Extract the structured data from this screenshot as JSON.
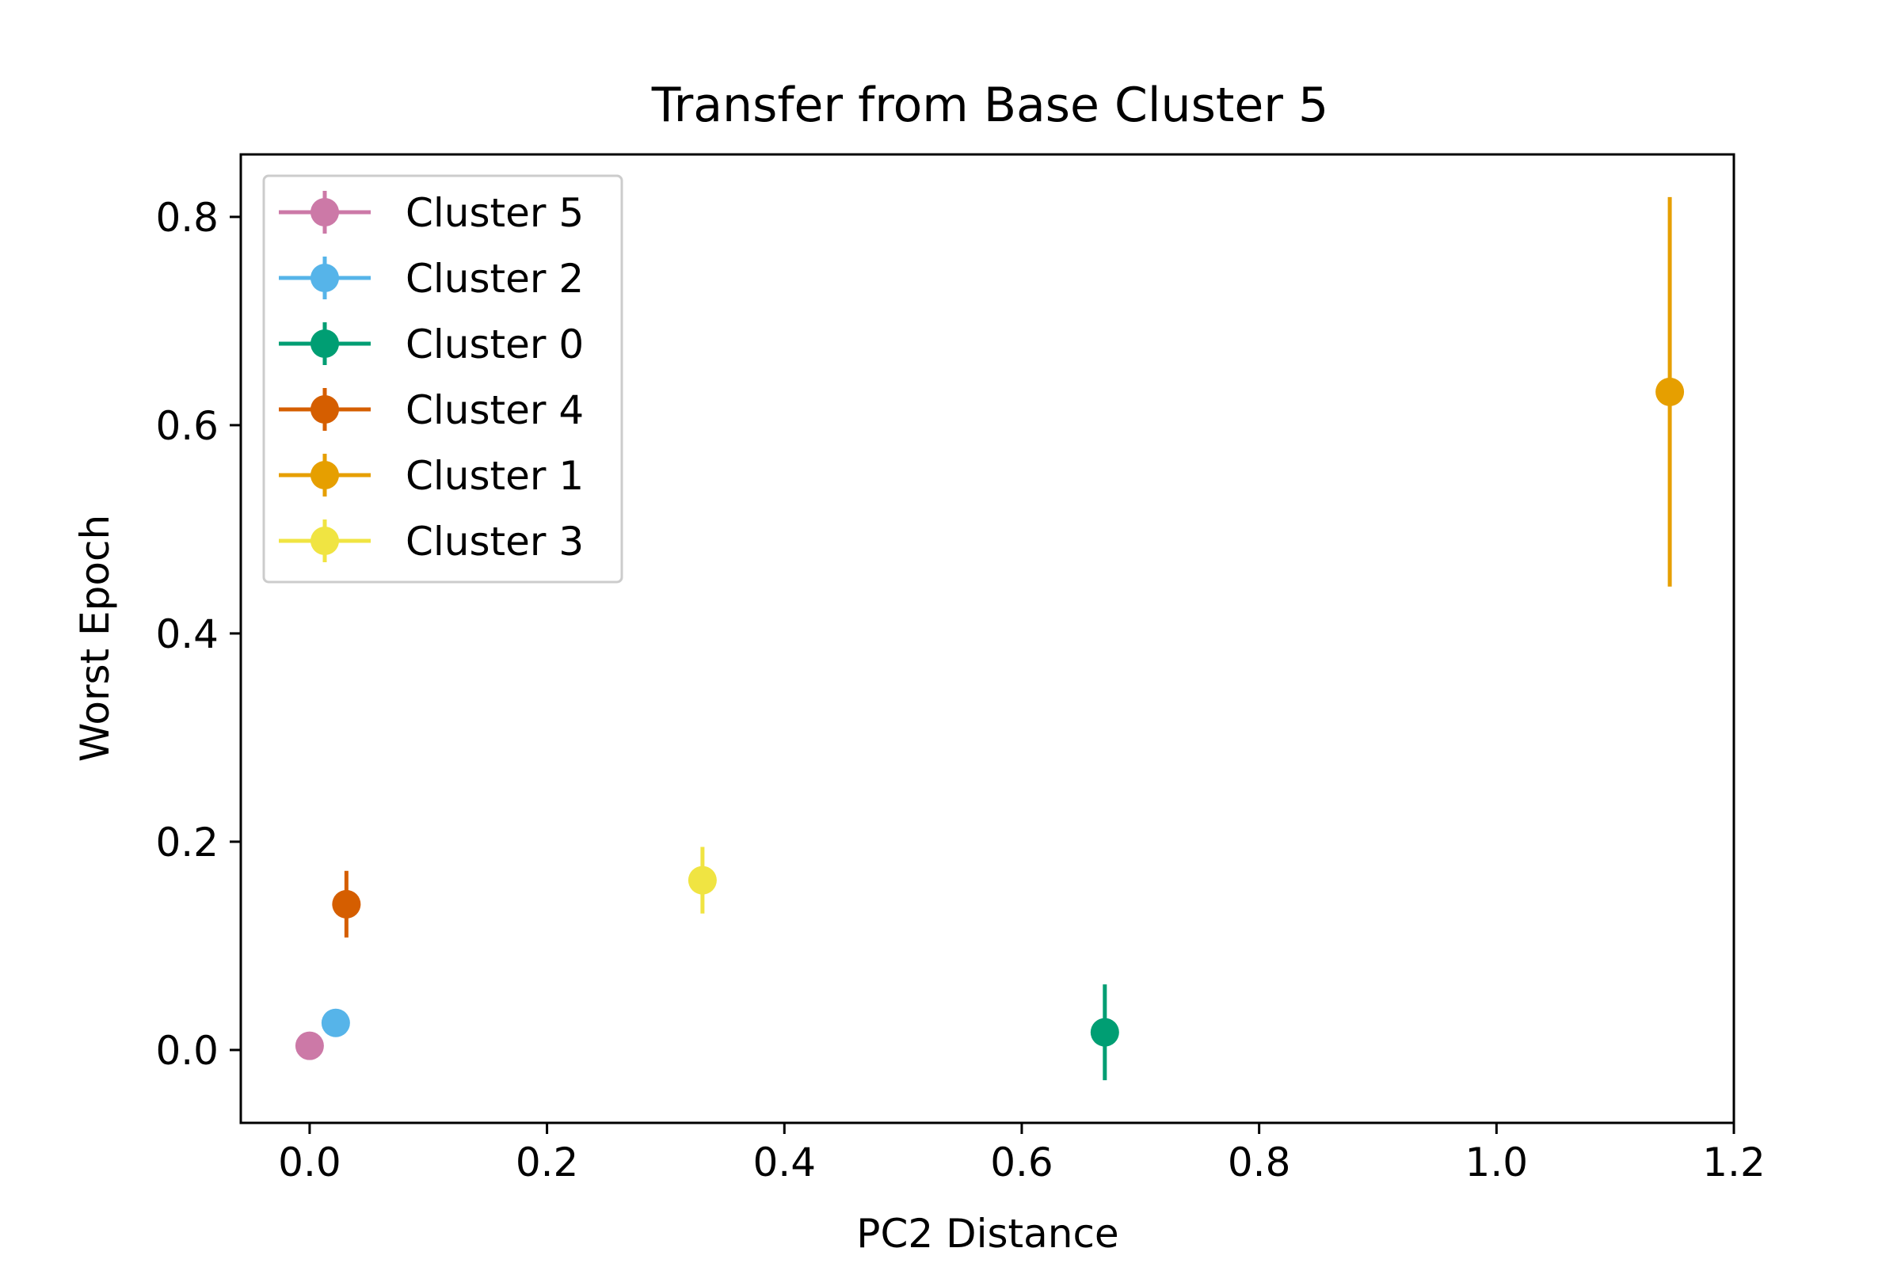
{
  "chart_data": {
    "type": "scatter",
    "title": "Transfer from Base Cluster 5",
    "xlabel": "PC2 Distance",
    "ylabel": "Worst Epoch",
    "xlim": [
      -0.058,
      1.2
    ],
    "ylim": [
      -0.07,
      0.86
    ],
    "xticks": [
      0.0,
      0.2,
      0.4,
      0.6,
      0.8,
      1.0,
      1.2
    ],
    "xtick_labels": [
      "0.0",
      "0.2",
      "0.4",
      "0.6",
      "0.8",
      "1.0",
      "1.2"
    ],
    "yticks": [
      0.0,
      0.2,
      0.4,
      0.6,
      0.8
    ],
    "ytick_labels": [
      "0.0",
      "0.2",
      "0.4",
      "0.6",
      "0.8"
    ],
    "grid": false,
    "legend_position": "top-left",
    "error_bars": true,
    "series": [
      {
        "name": "Cluster 5",
        "color": "#CC79A7",
        "x": 0.0,
        "y": 0.004,
        "yerr": 0.0
      },
      {
        "name": "Cluster 2",
        "color": "#56B4E9",
        "x": 0.022,
        "y": 0.026,
        "yerr": 0.0
      },
      {
        "name": "Cluster 0",
        "color": "#009E73",
        "x": 0.67,
        "y": 0.017,
        "yerr": 0.046
      },
      {
        "name": "Cluster 4",
        "color": "#D55E00",
        "x": 0.031,
        "y": 0.14,
        "yerr": 0.032
      },
      {
        "name": "Cluster 1",
        "color": "#E69F00",
        "x": 1.146,
        "y": 0.632,
        "yerr": 0.187
      },
      {
        "name": "Cluster 3",
        "color": "#F0E442",
        "x": 0.331,
        "y": 0.163,
        "yerr": 0.032
      }
    ]
  }
}
